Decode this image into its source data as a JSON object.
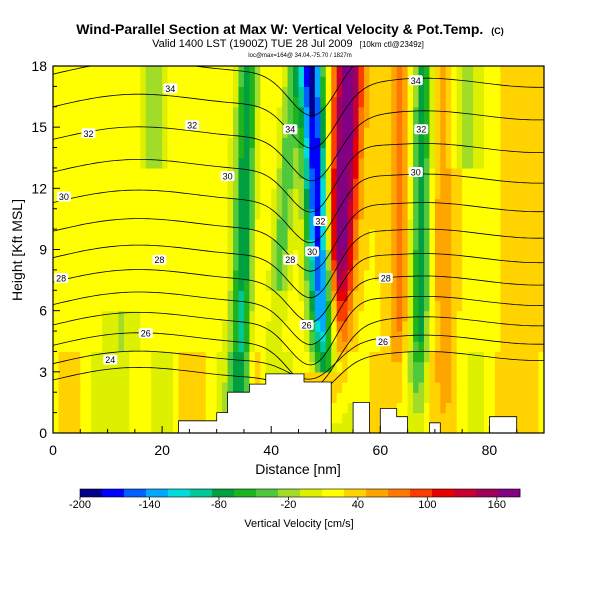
{
  "header": {
    "title": "Wind-Parallel Section at Max W: Vertical Velocity & Pot.Temp.",
    "copyright": "(C)",
    "subtitle_main": "Valid 1400 LST (1900Z) TUE 28 Jul 2009",
    "subtitle_tail": "[10km ctl@2349z]",
    "info_line": "loc@max=164@ 34.04,-75.70 / 1827m"
  },
  "chart_data": {
    "type": "heatmap",
    "xlabel": "Distance [nm]",
    "ylabel": "Height [Kft MSL]",
    "xlim": [
      0,
      90
    ],
    "ylim": [
      0,
      18
    ],
    "x_ticks": [
      "0",
      "20",
      "40",
      "60",
      "80"
    ],
    "x_tick_values": [
      0,
      20,
      40,
      60,
      80
    ],
    "y_ticks": [
      "0",
      "3",
      "6",
      "9",
      "12",
      "15",
      "18"
    ],
    "y_tick_values": [
      0,
      3,
      6,
      9,
      12,
      15,
      18
    ],
    "colorbar": {
      "label": "Vertical Velocity [cm/s]",
      "tick_labels": [
        "-200",
        "-140",
        "-80",
        "-20",
        "40",
        "100",
        "160"
      ],
      "tick_values": [
        -200,
        -140,
        -80,
        -20,
        40,
        100,
        160
      ],
      "range": [
        -200,
        180
      ],
      "colors": [
        "#00008b",
        "#0000ff",
        "#0060ff",
        "#00a8ff",
        "#00dcdc",
        "#00c896",
        "#00a040",
        "#1eb41e",
        "#50c83c",
        "#a0dc28",
        "#dcf000",
        "#ffff00",
        "#ffd200",
        "#ffa500",
        "#ff7800",
        "#ff3c00",
        "#e60000",
        "#c80032",
        "#a0005a",
        "#820082"
      ]
    },
    "contour_labels": [
      {
        "text": "34",
        "x": 21.5,
        "y": 16.9
      },
      {
        "text": "34",
        "x": 66.5,
        "y": 17.3
      },
      {
        "text": "32",
        "x": 6.5,
        "y": 14.7
      },
      {
        "text": "32",
        "x": 25.5,
        "y": 15.1
      },
      {
        "text": "34",
        "x": 43.5,
        "y": 14.9
      },
      {
        "text": "32",
        "x": 67.5,
        "y": 14.9
      },
      {
        "text": "30",
        "x": 32,
        "y": 12.6
      },
      {
        "text": "30",
        "x": 66.5,
        "y": 12.8
      },
      {
        "text": "30",
        "x": 2,
        "y": 11.6
      },
      {
        "text": "32",
        "x": 49,
        "y": 10.4
      },
      {
        "text": "28",
        "x": 19.5,
        "y": 8.5
      },
      {
        "text": "28",
        "x": 43.5,
        "y": 8.5
      },
      {
        "text": "30",
        "x": 47.5,
        "y": 8.9
      },
      {
        "text": "28",
        "x": 1.5,
        "y": 7.6
      },
      {
        "text": "28",
        "x": 61,
        "y": 7.6
      },
      {
        "text": "26",
        "x": 17,
        "y": 4.9
      },
      {
        "text": "26",
        "x": 46.5,
        "y": 5.3
      },
      {
        "text": "26",
        "x": 60.5,
        "y": 4.5
      },
      {
        "text": "24",
        "x": 10.5,
        "y": 3.6
      }
    ],
    "terrain": [
      [
        23,
        0
      ],
      [
        23,
        0.6
      ],
      [
        30,
        0.6
      ],
      [
        30,
        1
      ],
      [
        32,
        1
      ],
      [
        32,
        2
      ],
      [
        36,
        2
      ],
      [
        36,
        2.4
      ],
      [
        39,
        2.4
      ],
      [
        39,
        2.9
      ],
      [
        46,
        2.9
      ],
      [
        46,
        2.5
      ],
      [
        51,
        2.5
      ],
      [
        51,
        0
      ],
      [
        55,
        0
      ],
      [
        55,
        1.5
      ],
      [
        58,
        1.5
      ],
      [
        58,
        0
      ],
      [
        60,
        0
      ],
      [
        60,
        1.2
      ],
      [
        63,
        1.2
      ],
      [
        63,
        0.8
      ],
      [
        65,
        0.8
      ],
      [
        65,
        0
      ],
      [
        69,
        0
      ],
      [
        69,
        0.5
      ],
      [
        71,
        0.5
      ],
      [
        71,
        0
      ],
      [
        80,
        0
      ],
      [
        80,
        0.8
      ],
      [
        85,
        0.8
      ],
      [
        85,
        0
      ],
      [
        90,
        0
      ]
    ]
  }
}
